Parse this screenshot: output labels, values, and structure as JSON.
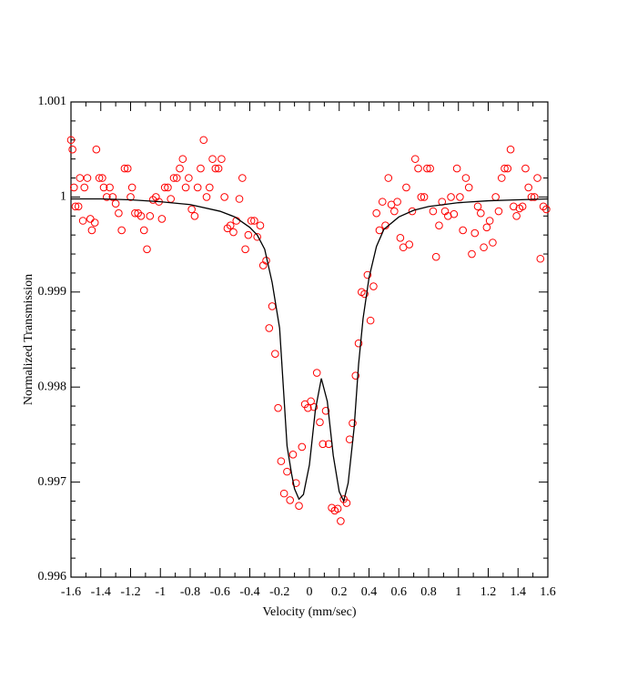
{
  "chart_data": {
    "type": "scatter",
    "xlabel": "Velocity (mm/sec)",
    "ylabel": "Normalized Transmission",
    "xlim": [
      -1.6,
      1.6
    ],
    "ylim": [
      0.996,
      1.001
    ],
    "xticks": [
      -1.6,
      -1.4,
      -1.2,
      -1,
      -0.8,
      -0.6,
      -0.4,
      -0.2,
      0,
      0.2,
      0.4,
      0.6,
      0.8,
      1,
      1.2,
      1.4,
      1.6
    ],
    "yticks": [
      0.996,
      0.997,
      0.998,
      0.999,
      1,
      1.001
    ],
    "series": [
      {
        "type": "scatter",
        "color": "#ff0000",
        "x": [
          -1.6,
          -1.59,
          -1.58,
          -1.57,
          -1.55,
          -1.54,
          -1.52,
          -1.51,
          -1.49,
          -1.47,
          -1.46,
          -1.44,
          -1.43,
          -1.41,
          -1.39,
          -1.38,
          -1.36,
          -1.34,
          -1.32,
          -1.3,
          -1.28,
          -1.26,
          -1.24,
          -1.22,
          -1.2,
          -1.19,
          -1.17,
          -1.15,
          -1.13,
          -1.11,
          -1.09,
          -1.07,
          -1.05,
          -1.03,
          -1.01,
          -0.99,
          -0.97,
          -0.95,
          -0.93,
          -0.91,
          -0.89,
          -0.87,
          -0.85,
          -0.83,
          -0.81,
          -0.79,
          -0.77,
          -0.75,
          -0.73,
          -0.71,
          -0.69,
          -0.67,
          -0.65,
          -0.63,
          -0.61,
          -0.59,
          -0.57,
          -0.55,
          -0.53,
          -0.51,
          -0.49,
          -0.47,
          -0.45,
          -0.43,
          -0.41,
          -0.39,
          -0.37,
          -0.35,
          -0.33,
          -0.31,
          -0.29,
          -0.27,
          -0.25,
          -0.23,
          -0.21,
          -0.19,
          -0.17,
          -0.15,
          -0.13,
          -0.11,
          -0.09,
          -0.07,
          -0.05,
          -0.03,
          -0.01,
          0.01,
          0.03,
          0.05,
          0.07,
          0.09,
          0.11,
          0.13,
          0.15,
          0.17,
          0.19,
          0.21,
          0.23,
          0.25,
          0.27,
          0.29,
          0.31,
          0.33,
          0.35,
          0.37,
          0.39,
          0.41,
          0.43,
          0.45,
          0.47,
          0.49,
          0.51,
          0.53,
          0.55,
          0.57,
          0.59,
          0.61,
          0.63,
          0.65,
          0.67,
          0.69,
          0.71,
          0.73,
          0.75,
          0.77,
          0.79,
          0.81,
          0.83,
          0.85,
          0.87,
          0.89,
          0.91,
          0.93,
          0.95,
          0.97,
          0.99,
          1.01,
          1.03,
          1.05,
          1.07,
          1.09,
          1.11,
          1.13,
          1.15,
          1.17,
          1.19,
          1.21,
          1.23,
          1.25,
          1.27,
          1.29,
          1.31,
          1.33,
          1.35,
          1.37,
          1.39,
          1.41,
          1.43,
          1.45,
          1.47,
          1.49,
          1.51,
          1.53,
          1.55,
          1.57,
          1.59
        ],
        "values": [
          1.0006,
          1.0005,
          1.0001,
          0.9999,
          0.9999,
          1.0002,
          0.99975,
          1.0001,
          1.0002,
          0.99977,
          0.99965,
          0.99973,
          1.0005,
          1.0002,
          1.0002,
          1.0001,
          1.0,
          1.0001,
          1.0,
          0.99993,
          0.99983,
          0.99965,
          1.0003,
          1.0003,
          1.0,
          1.0001,
          0.99983,
          0.99983,
          0.9998,
          0.99965,
          0.99945,
          0.9998,
          0.99997,
          1.0,
          0.99995,
          0.99977,
          1.0001,
          1.0001,
          0.99998,
          1.0002,
          1.0002,
          1.0003,
          1.0004,
          1.0001,
          1.0002,
          0.99987,
          0.9998,
          1.0001,
          1.0003,
          1.0006,
          1.0,
          1.0001,
          1.0004,
          1.0003,
          1.0003,
          1.0004,
          1.0,
          0.99967,
          0.9997,
          0.99963,
          0.99975,
          0.99998,
          1.0002,
          0.99945,
          0.9996,
          0.99975,
          0.99975,
          0.99958,
          0.9997,
          0.99928,
          0.99933,
          0.99862,
          0.99885,
          0.99835,
          0.99778,
          0.99722,
          0.99688,
          0.99711,
          0.99681,
          0.99729,
          0.99699,
          0.99675,
          0.99737,
          0.99782,
          0.99778,
          0.99785,
          0.99779,
          0.99815,
          0.99763,
          0.9974,
          0.99775,
          0.9974,
          0.99673,
          0.9967,
          0.99672,
          0.99659,
          0.99682,
          0.99678,
          0.99745,
          0.99762,
          0.99812,
          0.99846,
          0.999,
          0.99898,
          0.99918,
          0.9987,
          0.99906,
          0.99983,
          0.99965,
          0.99995,
          0.9997,
          1.0002,
          0.99992,
          0.99985,
          0.99995,
          0.99957,
          0.99947,
          1.0001,
          0.9995,
          0.99985,
          1.0004,
          1.0003,
          1.0,
          1.0,
          1.0003,
          1.0003,
          0.99985,
          0.99937,
          0.9997,
          0.99995,
          0.99985,
          0.9998,
          1.0,
          0.99982,
          1.0003,
          1.0,
          0.99965,
          1.0002,
          1.0001,
          0.9994,
          0.99962,
          0.9999,
          0.99983,
          0.99947,
          0.99968,
          0.99975,
          0.99952,
          1.0,
          0.99985,
          1.0002,
          1.0003,
          1.0003,
          1.0005,
          0.9999,
          0.9998,
          0.99988,
          0.9999,
          1.0003,
          1.0001,
          1.0,
          1.0,
          1.0002,
          0.99935,
          0.9999,
          0.99987
        ]
      },
      {
        "type": "line",
        "color": "#000000",
        "x": [
          -1.6,
          -1.4,
          -1.2,
          -1.0,
          -0.8,
          -0.6,
          -0.5,
          -0.4,
          -0.35,
          -0.3,
          -0.25,
          -0.2,
          -0.15,
          -0.12,
          -0.1,
          -0.07,
          -0.04,
          0,
          0.04,
          0.08,
          0.12,
          0.16,
          0.2,
          0.23,
          0.26,
          0.3,
          0.33,
          0.36,
          0.4,
          0.45,
          0.5,
          0.6,
          0.7,
          0.8,
          1.0,
          1.2,
          1.4,
          1.6
        ],
        "values": [
          0.99998,
          0.99998,
          0.99997,
          0.99995,
          0.99992,
          0.99985,
          0.99979,
          0.99968,
          0.9996,
          0.99945,
          0.9991,
          0.99862,
          0.99738,
          0.99709,
          0.99693,
          0.99682,
          0.99687,
          0.99718,
          0.99776,
          0.99809,
          0.99785,
          0.99728,
          0.9969,
          0.9968,
          0.99699,
          0.99757,
          0.99824,
          0.99872,
          0.99915,
          0.99948,
          0.99966,
          0.99979,
          0.99986,
          0.9999,
          0.99994,
          0.99996,
          0.99997,
          0.99998
        ]
      }
    ]
  }
}
